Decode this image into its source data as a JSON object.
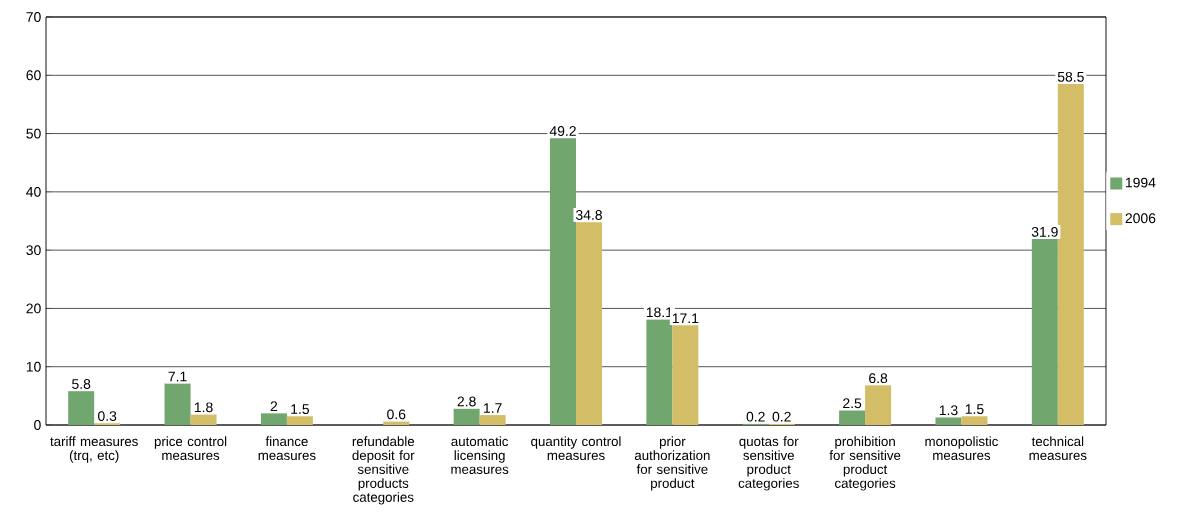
{
  "chart_data": {
    "type": "bar",
    "categories": [
      "tariff measures (trq, etc)",
      "price control measures",
      "finance measures",
      "refundable deposit for sensitive products categories",
      "automatic licensing measures",
      "quantity control measures",
      "prior authorization for sensitive product",
      "quotas for sensitive product categories",
      "prohibition for sensitive product categories",
      "monopolistic measures",
      "technical measures"
    ],
    "series": [
      {
        "name": "1994",
        "color": "#72a66f",
        "values": [
          5.8,
          7.1,
          2,
          null,
          2.8,
          49.2,
          18.1,
          0.2,
          2.5,
          1.3,
          31.9
        ]
      },
      {
        "name": "2006",
        "color": "#d4bd67",
        "values": [
          0.3,
          1.8,
          1.5,
          0.6,
          1.7,
          34.8,
          17.1,
          0.2,
          6.8,
          1.5,
          58.5
        ]
      }
    ],
    "ylim": [
      0,
      70
    ],
    "yticks": [
      0,
      10,
      20,
      30,
      40,
      50,
      60,
      70
    ],
    "grid": "y",
    "legend": "right",
    "data_labels": true
  }
}
